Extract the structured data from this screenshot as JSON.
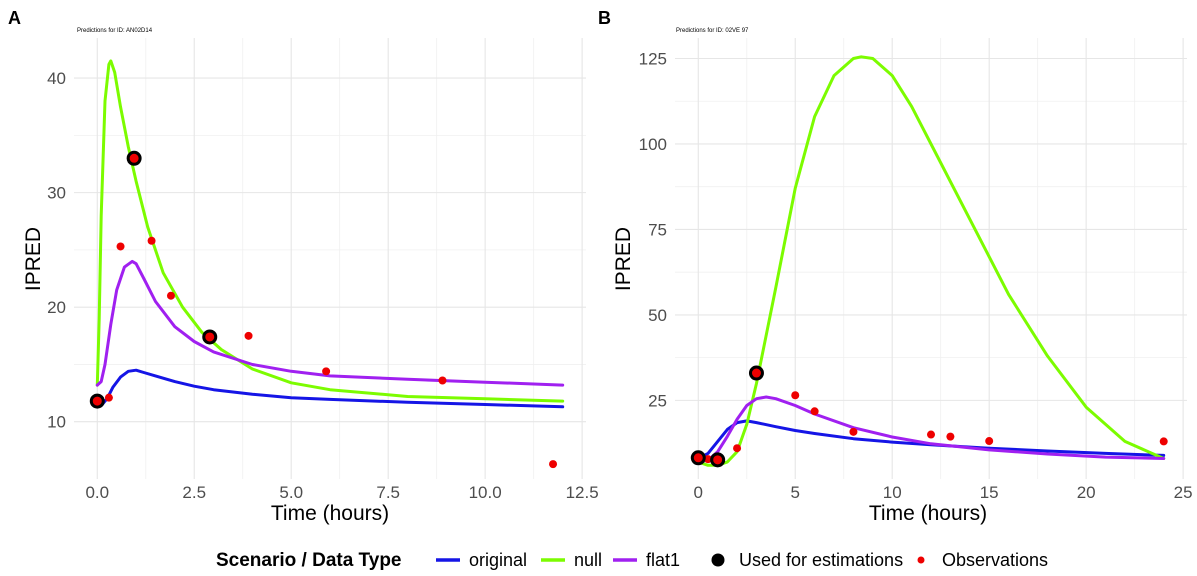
{
  "colors": {
    "original": "#1515e6",
    "null": "#7cfc00",
    "flat1": "#a020f0",
    "observations": "#ee0000",
    "estimation": "#000000",
    "grid": "#e6e6e6"
  },
  "legend": {
    "title": "Scenario / Data Type",
    "items": [
      {
        "label": "original",
        "kind": "line",
        "color": "#1515e6"
      },
      {
        "label": "null",
        "kind": "line",
        "color": "#7cfc00"
      },
      {
        "label": "flat1",
        "kind": "line",
        "color": "#a020f0"
      },
      {
        "label": "Used for estimations",
        "kind": "big-dot",
        "color": "#000000"
      },
      {
        "label": "Observations",
        "kind": "small-dot",
        "color": "#ee0000"
      }
    ]
  },
  "chart_data": [
    {
      "panel": "A",
      "subtitle": "Predictions for ID: AN02D14",
      "type": "line",
      "xlabel": "Time (hours)",
      "ylabel": "IPRED",
      "xlim": [
        -0.6,
        12.6
      ],
      "ylim": [
        5,
        43.5
      ],
      "xticks": [
        0,
        2.5,
        5,
        7.5,
        10,
        12.5
      ],
      "xtick_labels": [
        "0.0",
        "2.5",
        "5.0",
        "7.5",
        "10.0",
        "12.5"
      ],
      "yticks": [
        10,
        20,
        30,
        40
      ],
      "ytick_labels": [
        "10",
        "20",
        "30",
        "40"
      ],
      "grid": true,
      "series": [
        {
          "name": "original",
          "x": [
            0,
            0.1,
            0.25,
            0.4,
            0.6,
            0.8,
            1.0,
            1.2,
            1.5,
            2.0,
            2.5,
            3.0,
            4.0,
            5.0,
            6.0,
            8.0,
            10.0,
            12.0
          ],
          "y": [
            11.4,
            11.4,
            12.0,
            13.0,
            13.9,
            14.4,
            14.5,
            14.3,
            14.0,
            13.5,
            13.1,
            12.8,
            12.4,
            12.1,
            11.95,
            11.7,
            11.5,
            11.3
          ]
        },
        {
          "name": "null",
          "x": [
            0,
            0.05,
            0.1,
            0.2,
            0.3,
            0.35,
            0.45,
            0.6,
            0.8,
            1.0,
            1.3,
            1.7,
            2.2,
            2.7,
            3.2,
            4.0,
            5.0,
            6.0,
            8.0,
            10.0,
            12.0
          ],
          "y": [
            13.2,
            19.0,
            28.0,
            38.0,
            41.2,
            41.5,
            40.5,
            37.5,
            34.0,
            31.0,
            27.0,
            23.0,
            20.0,
            17.8,
            16.3,
            14.6,
            13.4,
            12.8,
            12.2,
            12.0,
            11.8
          ]
        },
        {
          "name": "flat1",
          "x": [
            0,
            0.1,
            0.2,
            0.35,
            0.5,
            0.7,
            0.9,
            1.0,
            1.2,
            1.5,
            2.0,
            2.5,
            3.0,
            4.0,
            5.0,
            6.0,
            8.0,
            10.0,
            12.0
          ],
          "y": [
            13.2,
            13.5,
            15.0,
            18.5,
            21.5,
            23.5,
            24.0,
            23.8,
            22.5,
            20.5,
            18.3,
            17.0,
            16.1,
            15.0,
            14.4,
            14.0,
            13.7,
            13.45,
            13.2
          ]
        }
      ],
      "estimation_points": {
        "x": [
          0,
          0.95,
          2.9
        ],
        "y": [
          11.8,
          33.0,
          17.4
        ]
      },
      "observations": {
        "x": [
          0,
          0.3,
          0.6,
          1.4,
          1.9,
          2.9,
          3.9,
          5.9,
          8.9,
          11.75
        ],
        "y": [
          11.8,
          12.1,
          25.3,
          25.8,
          21.0,
          17.3,
          17.5,
          14.4,
          13.6,
          6.3
        ]
      }
    },
    {
      "panel": "B",
      "subtitle": "Predictions for ID: 02VE 97",
      "type": "line",
      "xlabel": "Time (hours)",
      "ylabel": "IPRED",
      "xlim": [
        -1.2,
        25.2
      ],
      "ylim": [
        2,
        131
      ],
      "xticks": [
        0,
        5,
        10,
        15,
        20,
        25
      ],
      "xtick_labels": [
        "0",
        "5",
        "10",
        "15",
        "20",
        "25"
      ],
      "yticks": [
        25,
        50,
        75,
        100,
        125
      ],
      "ytick_labels": [
        "25",
        "50",
        "75",
        "100",
        "125"
      ],
      "grid": true,
      "series": [
        {
          "name": "original",
          "x": [
            0,
            0.5,
            1.0,
            1.5,
            2.0,
            2.5,
            3.0,
            4.0,
            5.0,
            6.0,
            8.0,
            10.0,
            12.0,
            15.0,
            18.0,
            21.0,
            24.0
          ],
          "y": [
            8,
            9.5,
            13,
            16.5,
            18.5,
            19.0,
            18.5,
            17.3,
            16.2,
            15.3,
            13.8,
            12.8,
            12.0,
            11.0,
            10.2,
            9.5,
            8.9
          ]
        },
        {
          "name": "null",
          "x": [
            0,
            0.5,
            1.0,
            1.5,
            2.0,
            2.5,
            3.0,
            4.0,
            5.0,
            6.0,
            7.0,
            8.0,
            8.4,
            9.0,
            10.0,
            11.0,
            12.0,
            14.0,
            16.0,
            18.0,
            20.0,
            22.0,
            24.0
          ],
          "y": [
            7,
            6,
            6,
            7,
            10,
            18,
            30,
            58,
            87,
            108,
            120,
            125,
            125.5,
            125,
            120,
            111,
            100,
            78,
            56,
            38,
            23,
            13,
            8
          ]
        },
        {
          "name": "flat1",
          "x": [
            0,
            0.5,
            1.0,
            1.5,
            2.0,
            2.5,
            3.0,
            3.5,
            4.0,
            5.0,
            6.0,
            8.0,
            10.0,
            12.0,
            15.0,
            18.0,
            21.0,
            24.0
          ],
          "y": [
            7,
            7.5,
            10,
            14.5,
            19.5,
            23.5,
            25.5,
            26.0,
            25.5,
            23.5,
            21.0,
            17.0,
            14.3,
            12.3,
            10.5,
            9.3,
            8.4,
            8.0
          ]
        }
      ],
      "estimation_points": {
        "x": [
          0,
          1.0,
          3.0
        ],
        "y": [
          8.2,
          7.6,
          33.0
        ]
      },
      "observations": {
        "x": [
          0,
          0.5,
          1.0,
          2.0,
          5.0,
          6.0,
          8.0,
          12.0,
          13.0,
          15.0,
          24.0
        ],
        "y": [
          7.6,
          7.8,
          8.0,
          11.0,
          26.5,
          21.8,
          15.8,
          15.0,
          14.4,
          13.1,
          13.0
        ]
      }
    }
  ]
}
